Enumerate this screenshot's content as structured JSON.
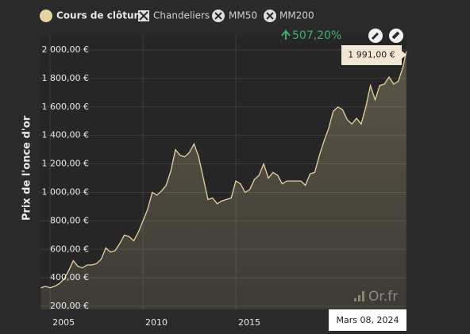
{
  "chart_data": {
    "type": "area",
    "y_label": "Prix de l'once d'or",
    "change_label": "507,20%",
    "legend_toggles": [
      "Chandeliers",
      "MM50",
      "MM200"
    ],
    "tooltip": {
      "date": "Mars 08, 2024",
      "value_label": "1 991,00 €"
    },
    "watermark": "Or.fr",
    "x": [
      2004.5,
      2004.75,
      2005.0,
      2005.25,
      2005.5,
      2005.75,
      2006.0,
      2006.25,
      2006.5,
      2006.75,
      2007.0,
      2007.25,
      2007.5,
      2007.75,
      2008.0,
      2008.25,
      2008.5,
      2008.75,
      2009.0,
      2009.25,
      2009.5,
      2009.75,
      2010.0,
      2010.25,
      2010.5,
      2010.75,
      2011.0,
      2011.25,
      2011.5,
      2011.75,
      2012.0,
      2012.25,
      2012.5,
      2012.75,
      2013.0,
      2013.25,
      2013.5,
      2013.75,
      2014.0,
      2014.25,
      2014.5,
      2014.75,
      2015.0,
      2015.25,
      2015.5,
      2015.75,
      2016.0,
      2016.25,
      2016.5,
      2016.75,
      2017.0,
      2017.25,
      2017.5,
      2017.75,
      2018.0,
      2018.25,
      2018.5,
      2018.75,
      2019.0,
      2019.25,
      2019.5,
      2019.75,
      2020.0,
      2020.25,
      2020.5,
      2020.75,
      2021.0,
      2021.25,
      2021.5,
      2021.75,
      2022.0,
      2022.25,
      2022.5,
      2022.75,
      2023.0,
      2023.25,
      2023.5,
      2023.75,
      2024.0,
      2024.18
    ],
    "series": [
      {
        "name": "Cours de clôture",
        "color": "#e6d3a3",
        "values": [
          330,
          340,
          330,
          340,
          360,
          390,
          450,
          520,
          480,
          470,
          490,
          490,
          500,
          530,
          610,
          580,
          590,
          640,
          700,
          690,
          660,
          720,
          800,
          880,
          1000,
          980,
          1010,
          1050,
          1150,
          1300,
          1260,
          1250,
          1280,
          1340,
          1250,
          1100,
          950,
          960,
          920,
          940,
          950,
          960,
          1080,
          1060,
          1000,
          1020,
          1090,
          1120,
          1200,
          1100,
          1140,
          1120,
          1060,
          1080,
          1080,
          1080,
          1080,
          1050,
          1130,
          1140,
          1260,
          1360,
          1450,
          1570,
          1600,
          1580,
          1510,
          1480,
          1520,
          1480,
          1600,
          1750,
          1650,
          1750,
          1760,
          1810,
          1760,
          1780,
          1880,
          1991
        ]
      }
    ],
    "xlim": [
      2004.44,
      2024.19
    ],
    "xticks": [
      2005,
      2010,
      2015
    ],
    "ylim": [
      178,
      2100
    ],
    "yticks": [
      {
        "value": 200,
        "label": "200,00 €"
      },
      {
        "value": 400,
        "label": "400,00 €"
      },
      {
        "value": 600,
        "label": "600,00 €"
      },
      {
        "value": 800,
        "label": "800,00 €"
      },
      {
        "value": 1000,
        "label": "1 000,00 €"
      },
      {
        "value": 1200,
        "label": "1 200,00 €"
      },
      {
        "value": 1400,
        "label": "1 400,00 €"
      },
      {
        "value": 1600,
        "label": "1 600,00 €"
      },
      {
        "value": 1800,
        "label": "1 800,00 €"
      },
      {
        "value": 2000,
        "label": "2 000,00 €"
      }
    ],
    "grid": true
  }
}
